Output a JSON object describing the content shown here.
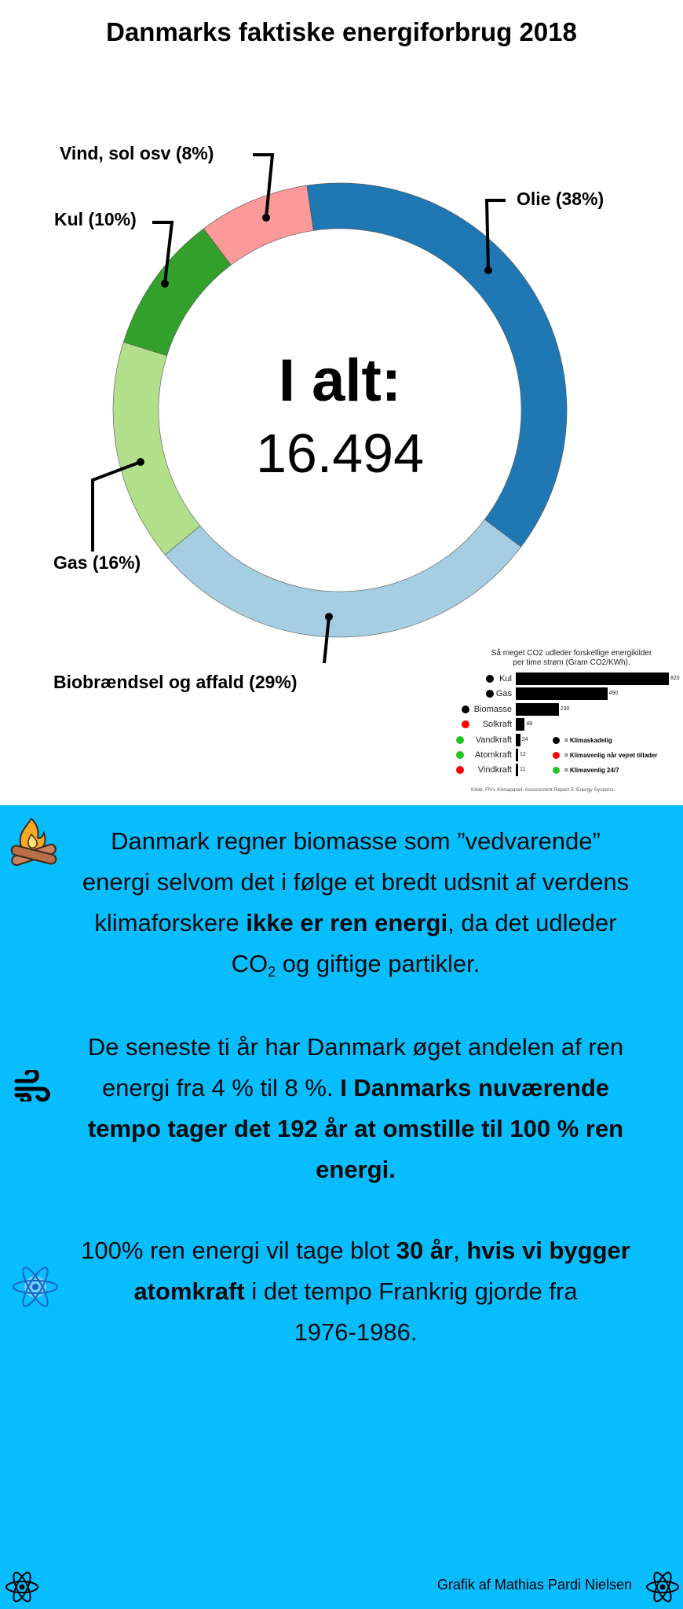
{
  "title": "Danmarks faktiske energiforbrug 2018",
  "chart_data": [
    {
      "type": "pie",
      "variant": "donut",
      "title": "Danmarks faktiske energiforbrug 2018",
      "center_label": "I alt:",
      "center_value": "16.494",
      "slices": [
        {
          "name": "Olie",
          "label": "Olie (38%)",
          "value": 38,
          "color": "#1f77b4"
        },
        {
          "name": "Biobrændsel og affald",
          "label": "Biobrændsel og affald (29%)",
          "value": 29,
          "color": "#a6cee3"
        },
        {
          "name": "Gas",
          "label": "Gas (16%)",
          "value": 16,
          "color": "#b2df8a"
        },
        {
          "name": "Kul",
          "label": "Kul (10%)",
          "value": 10,
          "color": "#33a02c"
        },
        {
          "name": "Vind, sol osv",
          "label": "Vind, sol osv (8%)",
          "value": 8,
          "color": "#fb9a99"
        }
      ]
    },
    {
      "type": "bar",
      "orientation": "horizontal",
      "title_lines": [
        "Så meget CO2 udleder forskellige energikilder",
        "per time strøm (Gram CO2/KWh)."
      ],
      "categories": [
        "Kul",
        "Gas",
        "Biomasse",
        "Solkraft",
        "Vandkraft",
        "Atomkraft",
        "Vindkraft"
      ],
      "values": [
        820,
        490,
        230,
        48,
        24,
        12,
        11
      ],
      "value_labels": [
        "820",
        "490",
        "230",
        "48",
        "24",
        "12",
        "11"
      ],
      "category_class": [
        "skadelig",
        "skadelig",
        "skadelig",
        "vejr",
        "247",
        "247",
        "vejr"
      ],
      "legend": [
        {
          "key": "skadelig",
          "label": "= Klimaskadelig",
          "color": "#000000"
        },
        {
          "key": "vejr",
          "label": "= Klimavenlig når vejret tillader",
          "color": "#ff0000"
        },
        {
          "key": "247",
          "label": "= Klimavenlig 24/7",
          "color": "#1fc41f"
        }
      ],
      "source": "Kilde: FN's Klimapanel. Assessment Report 5: Energy Systems."
    }
  ],
  "info": {
    "p1": {
      "l1": "Danmark regner biomasse som ”vedvarende”",
      "l2": "energi selvom det i følge et bredt udsnit af verdens",
      "l3a": "klimaforskere ",
      "l3b": "ikke er ren energi",
      "l3c": ", da det udleder",
      "l4a": "CO",
      "l4sub": "2",
      "l4b": " og giftige partikler."
    },
    "p2": {
      "l1": "De seneste ti år har Danmark øget andelen af ren",
      "l2a": "energi fra 4 % til 8 %. ",
      "l2b": "I Danmarks nuværende",
      "l3": "tempo tager det 192 år at omstille til 100 % ren",
      "l4": "energi."
    },
    "p3": {
      "l1a": "100% ren energi vil tage blot ",
      "l1b": "30 år",
      "l1c": ", ",
      "l1d": "hvis vi bygger",
      "l2a": "atomkraft",
      "l2b": " i det tempo Frankrig gjorde fra",
      "l3": "1976-1986."
    },
    "bg_color": "#08bdfe"
  },
  "footer": {
    "credit": "Grafik af Mathias Pardi Nielsen"
  }
}
